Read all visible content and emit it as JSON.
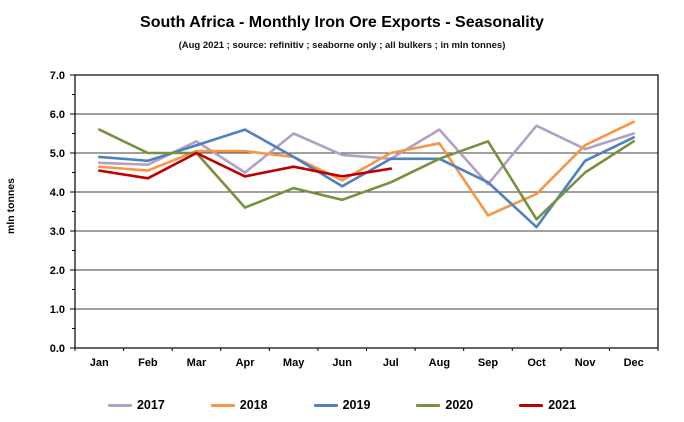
{
  "title": "South Africa - Monthly Iron Ore Exports - Seasonality",
  "subtitle": "(Aug 2021 ; source: refinitiv ; seaborne only ; all bulkers ; in mln tonnes)",
  "y_axis_title": "mln tonnes",
  "chart_data": {
    "type": "line",
    "title": "South Africa - Monthly Iron Ore Exports - Seasonality",
    "subtitle": "(Aug 2021 ; source: refinitiv ; seaborne only ; all bulkers ; in mln tonnes)",
    "xlabel": "",
    "ylabel": "mln tonnes",
    "categories": [
      "Jan",
      "Feb",
      "Mar",
      "Apr",
      "May",
      "Jun",
      "Jul",
      "Aug",
      "Sep",
      "Oct",
      "Nov",
      "Dec"
    ],
    "ylim": [
      0.0,
      7.0
    ],
    "ytick_step": 1.0,
    "ytick_labels": [
      "0.0",
      "1.0",
      "2.0",
      "3.0",
      "4.0",
      "5.0",
      "6.0",
      "7.0"
    ],
    "grid": true,
    "legend_position": "bottom",
    "axis_color": "#000000",
    "gridline_color": "#404040",
    "series": [
      {
        "name": "2017",
        "color": "#b2a1c7",
        "values": [
          4.75,
          4.7,
          5.3,
          4.5,
          5.5,
          4.95,
          4.85,
          5.6,
          4.2,
          5.7,
          5.1,
          5.5
        ]
      },
      {
        "name": "2018",
        "color": "#f79646",
        "values": [
          4.65,
          4.55,
          5.05,
          5.05,
          4.9,
          4.3,
          5.0,
          5.25,
          3.4,
          3.95,
          5.2,
          5.8
        ]
      },
      {
        "name": "2019",
        "color": "#4f81bd",
        "values": [
          4.9,
          4.8,
          5.2,
          5.6,
          4.9,
          4.15,
          4.85,
          4.85,
          4.25,
          3.1,
          4.8,
          5.4
        ]
      },
      {
        "name": "2020",
        "color": "#76923c",
        "values": [
          5.6,
          5.0,
          5.0,
          3.6,
          4.1,
          3.8,
          4.25,
          4.85,
          5.3,
          3.3,
          4.5,
          5.3
        ]
      },
      {
        "name": "2021",
        "color": "#c00000",
        "values": [
          4.55,
          4.35,
          5.0,
          4.4,
          4.65,
          4.4,
          4.6,
          null,
          null,
          null,
          null,
          null
        ]
      }
    ]
  }
}
